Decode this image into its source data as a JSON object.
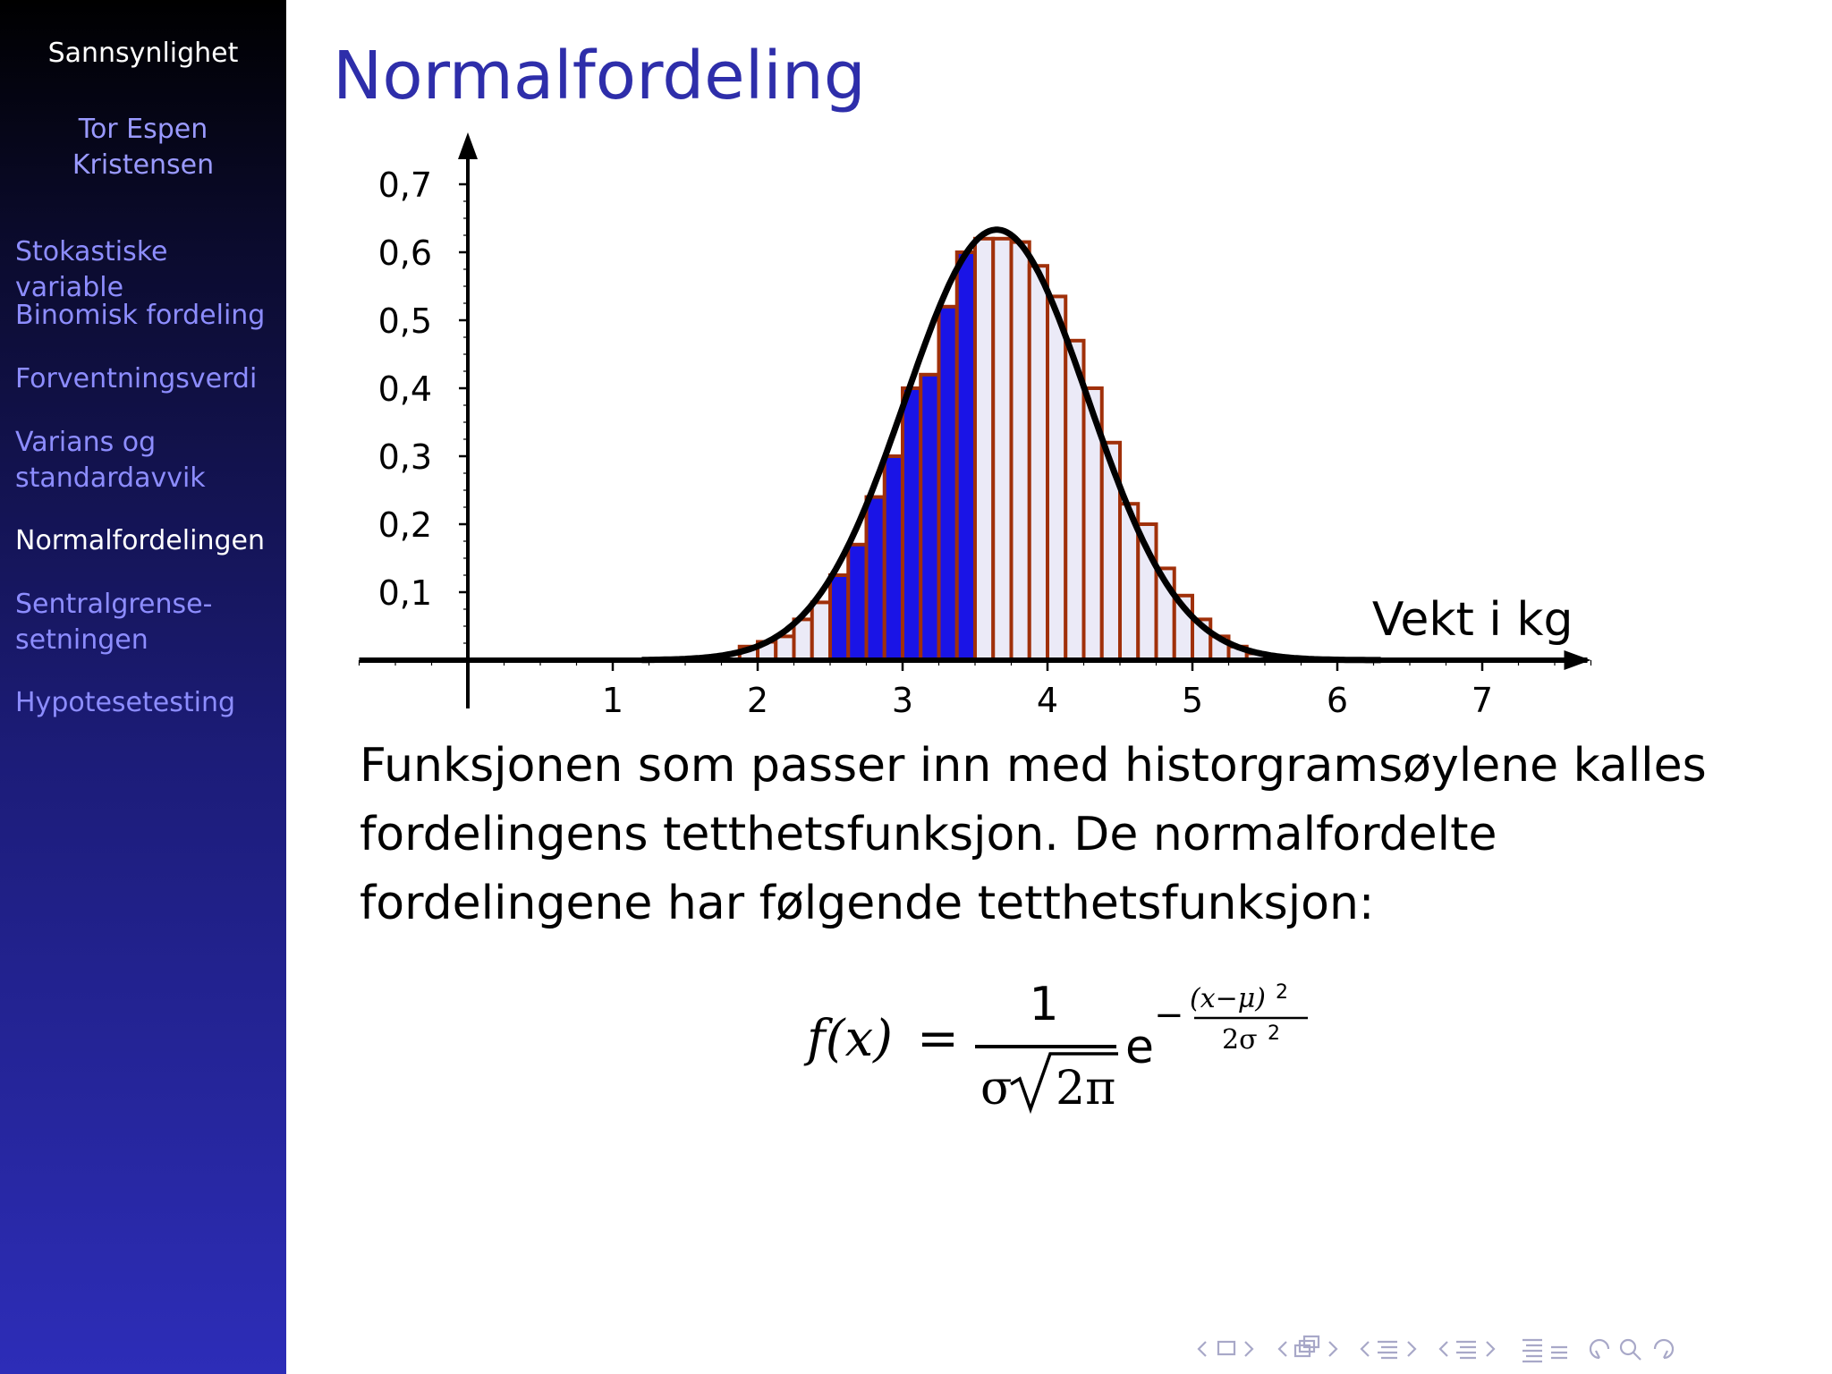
{
  "sidebar": {
    "title": "Sannsynlighet",
    "author_line1": "Tor Espen",
    "author_line2": "Kristensen",
    "items": [
      {
        "label": "Stokastiske variable",
        "active": false
      },
      {
        "label": "Binomisk fordeling",
        "active": false
      },
      {
        "label": "Forventningsverdi",
        "active": false
      },
      {
        "label_line1": "Varians og",
        "label_line2": "standardavvik",
        "active": false
      },
      {
        "label": "Normalfordelingen",
        "active": true
      },
      {
        "label_line1": "Sentralgrense-",
        "label_line2": "setningen",
        "active": false
      },
      {
        "label": "Hypotesetesting",
        "active": false
      }
    ]
  },
  "frame": {
    "title": "Normalfordeling",
    "body_text": "Funksjonen som passer inn med historgramsøylene kalles fordelingens tetthetsfunksjon. De normalfordelte fordelingene har følgende tetthetsfunksjon:"
  },
  "formula": {
    "lhs": "f(x)",
    "equals": "=",
    "numerator": "1",
    "denom_sigma": "σ",
    "denom_radicand": "2π",
    "base": "e",
    "exp_minus": "−",
    "exp_numerator": "(x−μ)",
    "exp_num_power": "2",
    "exp_denominator": "2σ",
    "exp_den_power": "2"
  },
  "chart_data": {
    "type": "bar",
    "xlabel": "Vekt i kg",
    "ylabel": "",
    "xlim": [
      -0.75,
      7.75
    ],
    "ylim": [
      0,
      0.7
    ],
    "xticks": [
      "1",
      "2",
      "3",
      "4",
      "5",
      "6",
      "7"
    ],
    "yticks": [
      "0,1",
      "0,2",
      "0,3",
      "0,4",
      "0,5",
      "0,6",
      "0,7"
    ],
    "bar_width": 0.125,
    "bars": [
      {
        "x": 1.875,
        "y": 0.02,
        "shaded": false
      },
      {
        "x": 2.0,
        "y": 0.027,
        "shaded": false
      },
      {
        "x": 2.125,
        "y": 0.035,
        "shaded": false
      },
      {
        "x": 2.25,
        "y": 0.06,
        "shaded": false
      },
      {
        "x": 2.375,
        "y": 0.085,
        "shaded": false
      },
      {
        "x": 2.5,
        "y": 0.125,
        "shaded": true
      },
      {
        "x": 2.625,
        "y": 0.17,
        "shaded": true
      },
      {
        "x": 2.75,
        "y": 0.24,
        "shaded": true
      },
      {
        "x": 2.875,
        "y": 0.3,
        "shaded": true
      },
      {
        "x": 3.0,
        "y": 0.4,
        "shaded": true
      },
      {
        "x": 3.125,
        "y": 0.42,
        "shaded": true
      },
      {
        "x": 3.25,
        "y": 0.52,
        "shaded": true
      },
      {
        "x": 3.375,
        "y": 0.6,
        "shaded": true
      },
      {
        "x": 3.5,
        "y": 0.62,
        "shaded": false
      },
      {
        "x": 3.625,
        "y": 0.62,
        "shaded": false
      },
      {
        "x": 3.75,
        "y": 0.615,
        "shaded": false
      },
      {
        "x": 3.875,
        "y": 0.58,
        "shaded": false
      },
      {
        "x": 4.0,
        "y": 0.535,
        "shaded": false
      },
      {
        "x": 4.125,
        "y": 0.47,
        "shaded": false
      },
      {
        "x": 4.25,
        "y": 0.4,
        "shaded": false
      },
      {
        "x": 4.375,
        "y": 0.32,
        "shaded": false
      },
      {
        "x": 4.5,
        "y": 0.23,
        "shaded": false
      },
      {
        "x": 4.625,
        "y": 0.2,
        "shaded": false
      },
      {
        "x": 4.75,
        "y": 0.135,
        "shaded": false
      },
      {
        "x": 4.875,
        "y": 0.095,
        "shaded": false
      },
      {
        "x": 5.0,
        "y": 0.06,
        "shaded": false
      },
      {
        "x": 5.125,
        "y": 0.035,
        "shaded": false
      },
      {
        "x": 5.25,
        "y": 0.02,
        "shaded": false
      },
      {
        "x": 5.375,
        "y": 0.01,
        "shaded": false
      },
      {
        "x": 5.5,
        "y": 0.005,
        "shaded": false
      }
    ],
    "curve": {
      "type": "normal-density",
      "mean": 3.65,
      "sd": 0.63
    },
    "colors": {
      "bar_edge": "#a0300a",
      "bar_fill": "#ebeaf7",
      "shaded_fill": "#1a14e6",
      "curve": "#000000",
      "axis": "#000000"
    }
  },
  "navigation": {
    "icons": [
      "prev-slide-icon",
      "slide-icon",
      "next-slide-icon",
      "prev-frame-icon",
      "frame-icon",
      "next-frame-icon",
      "prev-subsection-icon",
      "subsection-icon",
      "next-subsection-icon",
      "prev-section-icon",
      "section-icon",
      "next-section-icon",
      "toc-icon",
      "align-icon",
      "back-icon",
      "search-icon",
      "forward-icon"
    ]
  }
}
